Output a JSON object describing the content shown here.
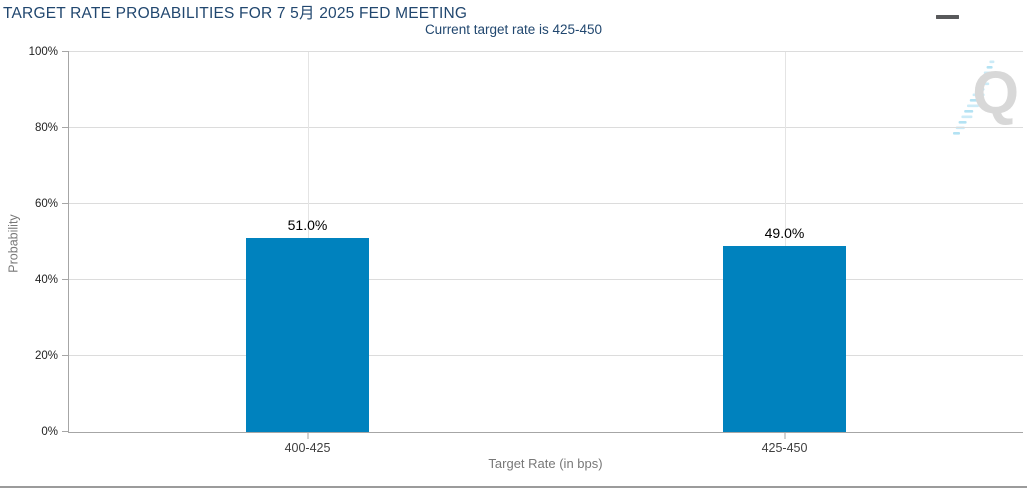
{
  "header": {
    "title": "TARGET RATE PROBABILITIES FOR 7 5月 2025 FED MEETING",
    "subtitle": "Current target rate is 425-450",
    "menu_icon": "hamburger-icon"
  },
  "chart_data": {
    "type": "bar",
    "title": "TARGET RATE PROBABILITIES FOR 7 5月 2025 FED MEETING",
    "subtitle": "Current target rate is 425-450",
    "categories": [
      "400-425",
      "425-450"
    ],
    "values": [
      51.0,
      49.0
    ],
    "value_labels": [
      "51.0%",
      "49.0%"
    ],
    "xlabel": "Target Rate (in bps)",
    "ylabel": "Probability",
    "ylim": [
      0,
      100
    ],
    "y_ticks": [
      "0%",
      "20%",
      "40%",
      "60%",
      "80%",
      "100%"
    ],
    "grid": true,
    "legend": "none",
    "bar_color": "#0082BE"
  },
  "watermark": {
    "letter": "Q",
    "icon": "quandl-logo-icon"
  },
  "colors": {
    "title_text": "#21476F",
    "bar": "#0082BE",
    "gridline": "#DCDCDC",
    "axis_line": "#A6A6A6",
    "axis_title_text": "#787878",
    "tick_label_text": "#222222",
    "category_label_text": "#3F3F3F",
    "value_label_text": "#000000",
    "menu_icon": "#58595B",
    "watermark_q": "#D8D8D8",
    "watermark_dashes": "#ADDFF2",
    "bottom_border": "#9B9B9B"
  }
}
